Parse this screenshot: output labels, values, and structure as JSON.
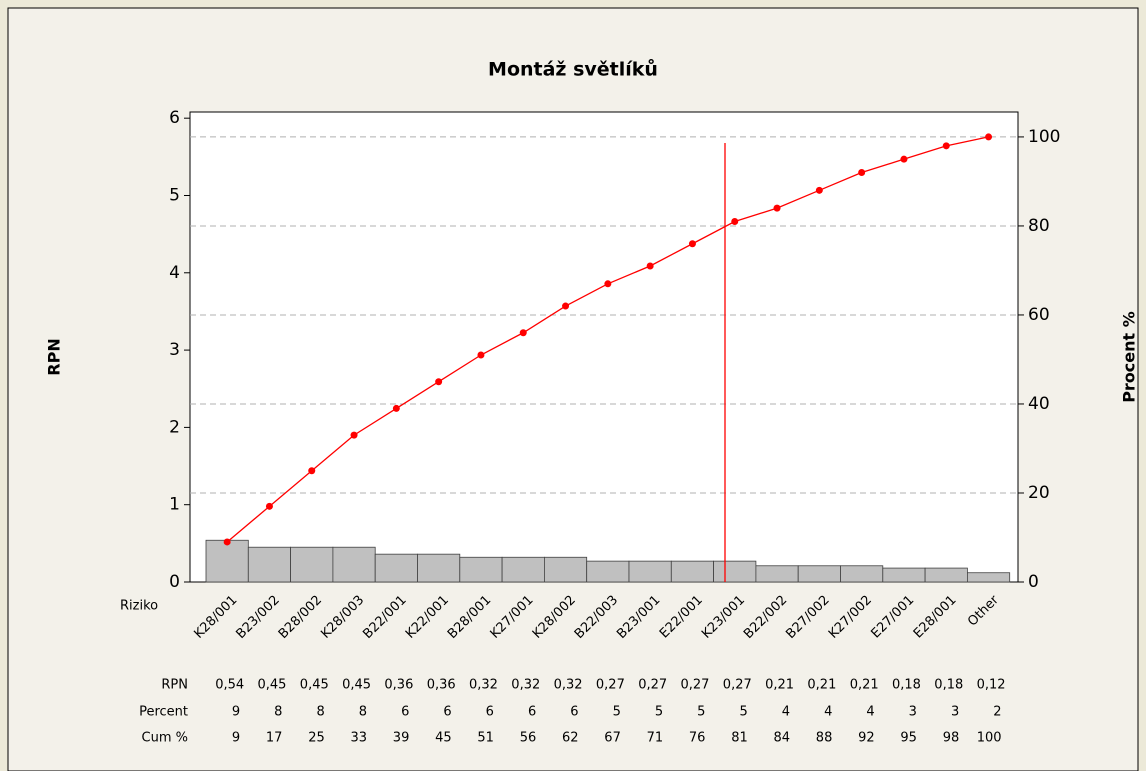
{
  "chart_data": {
    "type": "pareto",
    "title": "Montáž světlíků",
    "y_label": "RPN",
    "y2_label": "Procent %",
    "category_axis_label": "Riziko",
    "categories": [
      "K28/001",
      "B23/002",
      "B28/002",
      "K28/003",
      "B22/001",
      "K22/001",
      "B28/001",
      "K27/001",
      "K28/002",
      "B22/003",
      "B23/001",
      "E22/001",
      "K23/001",
      "B22/002",
      "B27/002",
      "K27/002",
      "E27/001",
      "E28/001",
      "Other"
    ],
    "series": [
      {
        "name": "RPN",
        "color": "#c0c0c0",
        "values": [
          0.54,
          0.45,
          0.45,
          0.45,
          0.36,
          0.36,
          0.32,
          0.32,
          0.32,
          0.27,
          0.27,
          0.27,
          0.27,
          0.21,
          0.21,
          0.21,
          0.18,
          0.18,
          0.12
        ],
        "value_labels": [
          "0,54",
          "0,45",
          "0,45",
          "0,45",
          "0,36",
          "0,36",
          "0,32",
          "0,32",
          "0,32",
          "0,27",
          "0,27",
          "0,27",
          "0,27",
          "0,21",
          "0,21",
          "0,21",
          "0,18",
          "0,18",
          "0,12"
        ]
      },
      {
        "name": "Percent",
        "values": [
          9,
          8,
          8,
          8,
          6,
          6,
          6,
          6,
          6,
          5,
          5,
          5,
          5,
          4,
          4,
          4,
          3,
          3,
          2
        ]
      },
      {
        "name": "Cum %",
        "color": "#ff0000",
        "axis": "y2",
        "values": [
          9,
          17,
          25,
          33,
          39,
          45,
          51,
          56,
          62,
          67,
          71,
          76,
          81,
          84,
          88,
          92,
          95,
          98,
          100
        ]
      }
    ],
    "ylim": [
      0,
      6.08
    ],
    "yticks": [
      0,
      1,
      2,
      3,
      4,
      5,
      6
    ],
    "y2lim": [
      0,
      105.6
    ],
    "y2ticks": [
      0,
      20,
      40,
      60,
      80,
      100
    ],
    "grid": "y2"
  }
}
